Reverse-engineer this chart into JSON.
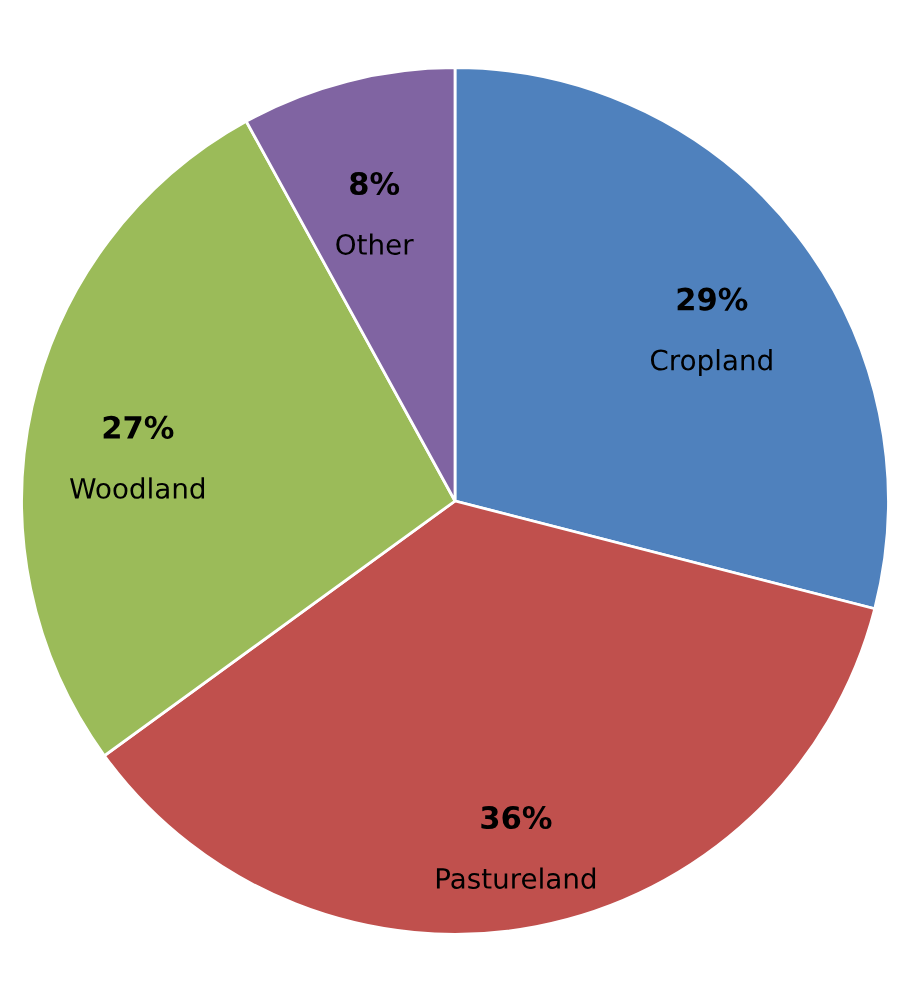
{
  "chart_data": {
    "type": "pie",
    "categories": [
      "Cropland",
      "Pastureland",
      "Woodland",
      "Other"
    ],
    "values": [
      29,
      36,
      27,
      8
    ],
    "colors": [
      "#4f81bd",
      "#c0504d",
      "#9bbb59",
      "#8064a2"
    ],
    "value_labels": [
      "29%",
      "36%",
      "27%",
      "8%"
    ]
  }
}
